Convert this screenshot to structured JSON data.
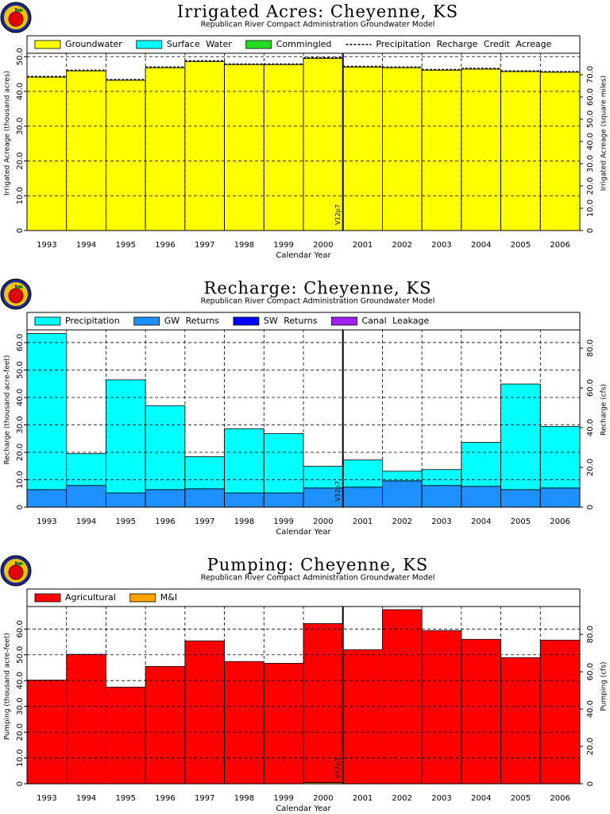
{
  "chart_data": [
    {
      "type": "bar",
      "stacked": true,
      "grid": true,
      "title": "Irrigated Acres: Cheyenne, KS",
      "subtitle": "Republican River Compact Administration Groundwater Model",
      "x_label": "Calendar Year",
      "y_label": "Irrigated Acreage (thousand acres)",
      "y2_label": "Irrigated Acreage (square miles)",
      "annotation": "V12p7",
      "categories": [
        "1993",
        "1994",
        "1995",
        "1996",
        "1997",
        "1998",
        "1999",
        "2000",
        "2001",
        "2002",
        "2003",
        "2004",
        "2005",
        "2006"
      ],
      "series": [
        {
          "name": "Groundwater",
          "color": "#ffff00",
          "values": [
            44.1,
            45.9,
            43.2,
            46.8,
            48.6,
            47.7,
            47.7,
            49.5,
            47.0,
            46.8,
            46.1,
            46.4,
            45.7,
            45.5
          ]
        },
        {
          "name": "Surface Water",
          "color": "#00ffff",
          "values": [
            0,
            0,
            0,
            0,
            0,
            0,
            0,
            0,
            0,
            0,
            0,
            0,
            0,
            0
          ]
        },
        {
          "name": "Commingled",
          "color": "#22dd22",
          "values": [
            0,
            0,
            0,
            0,
            0,
            0,
            0,
            0,
            0,
            0,
            0,
            0,
            0,
            0
          ]
        },
        {
          "name": "Precipitation Recharge Credit Acreage",
          "color": "#000000",
          "type": "line",
          "values": [
            44.3,
            46.1,
            43.4,
            47.0,
            48.8,
            47.9,
            47.9,
            49.7,
            47.2,
            47.0,
            46.3,
            46.6,
            45.9,
            45.7
          ]
        }
      ],
      "ylim": [
        0,
        56
      ],
      "yticks": [
        {
          "value": 0,
          "label": "0"
        },
        {
          "value": 10,
          "label": "10.0"
        },
        {
          "value": 20,
          "label": "20.0"
        },
        {
          "value": 30,
          "label": "30.0"
        },
        {
          "value": 40,
          "label": "40.0"
        },
        {
          "value": 50,
          "label": "50.0"
        }
      ],
      "y2lim": [
        0,
        87.5
      ],
      "y2ticks": [
        0,
        {
          "value": 10,
          "label": "10.0"
        },
        {
          "value": 20,
          "label": "20.0"
        },
        {
          "value": 30,
          "label": "30.0"
        },
        {
          "value": 40,
          "label": "40.0"
        },
        {
          "value": 50,
          "label": "50.0"
        },
        {
          "value": 60,
          "label": "60.0"
        },
        {
          "value": 70,
          "label": "70.0"
        }
      ]
    },
    {
      "type": "bar",
      "stacked": true,
      "grid": true,
      "title": "Recharge: Cheyenne, KS",
      "subtitle": "Republican River Compact Administration Groundwater Model",
      "x_label": "Calendar Year",
      "y_label": "Recharge (thousand acre-feet)",
      "y2_label": "Recharge (cfs)",
      "annotation": "V12p7",
      "categories": [
        "1993",
        "1994",
        "1995",
        "1996",
        "1997",
        "1998",
        "1999",
        "2000",
        "2001",
        "2002",
        "2003",
        "2004",
        "2005",
        "2006"
      ],
      "series": [
        {
          "name": "Precipitation",
          "color": "#00ffff",
          "values": [
            56.9,
            11.6,
            41.2,
            30.6,
            11.7,
            23.4,
            21.6,
            7.9,
            9.9,
            3.5,
            5.8,
            16.0,
            38.5,
            22.4
          ]
        },
        {
          "name": "GW Returns",
          "color": "#1e90ff",
          "values": [
            6.4,
            7.9,
            5.2,
            6.4,
            6.7,
            5.2,
            5.2,
            7.0,
            7.3,
            9.6,
            7.9,
            7.6,
            6.4,
            7.0
          ]
        },
        {
          "name": "SW Returns",
          "color": "#0000ff",
          "values": [
            0,
            0,
            0,
            0,
            0,
            0,
            0,
            0,
            0,
            0,
            0,
            0,
            0,
            0
          ]
        },
        {
          "name": "Canal Leakage",
          "color": "#a020f0",
          "values": [
            0,
            0,
            0,
            0,
            0,
            0,
            0,
            0,
            0,
            0,
            0,
            0,
            0,
            0
          ]
        }
      ],
      "stack_order": [
        1,
        2,
        3,
        0
      ],
      "ylim": [
        0,
        71
      ],
      "yticks": [
        0,
        {
          "value": 10,
          "label": "10.0"
        },
        {
          "value": 20,
          "label": "20.0"
        },
        {
          "value": 30,
          "label": "30.0"
        },
        {
          "value": 40,
          "label": "40.0"
        },
        {
          "value": 50,
          "label": "50.0"
        },
        {
          "value": 60,
          "label": "60.0"
        }
      ],
      "y2lim": [
        0,
        98
      ],
      "y2ticks": [
        0,
        {
          "value": 20,
          "label": "20.0"
        },
        {
          "value": 40,
          "label": "40.0"
        },
        {
          "value": 60,
          "label": "60.0"
        },
        {
          "value": 80,
          "label": "80.0"
        }
      ]
    },
    {
      "type": "bar",
      "stacked": true,
      "grid": true,
      "title": "Pumping: Cheyenne, KS",
      "subtitle": "Republican River Compact Administration Groundwater Model",
      "x_label": "Calendar Year",
      "y_label": "Pumping (thousand acre-feet)",
      "y2_label": "Pumping (cfs)",
      "annotation": "V12p7",
      "categories": [
        "1993",
        "1994",
        "1995",
        "1996",
        "1997",
        "1998",
        "1999",
        "2000",
        "2001",
        "2002",
        "2003",
        "2004",
        "2005",
        "2006"
      ],
      "series": [
        {
          "name": "Agricultural",
          "color": "#ff0000",
          "values": [
            40.2,
            50.2,
            37.5,
            45.5,
            55.4,
            47.4,
            46.7,
            61.6,
            52.0,
            67.5,
            59.4,
            56.0,
            48.9,
            55.7
          ]
        },
        {
          "name": "M&I",
          "color": "#ffa500",
          "values": [
            0,
            0,
            0,
            0,
            0,
            0,
            0,
            0.5,
            0,
            0,
            0,
            0,
            0,
            0
          ]
        }
      ],
      "stack_order": [
        1,
        0
      ],
      "ylim": [
        0,
        75.5
      ],
      "yticks": [
        0,
        {
          "value": 10,
          "label": "10.0"
        },
        {
          "value": 20,
          "label": "20.0"
        },
        {
          "value": 30,
          "label": "30.0"
        },
        {
          "value": 40,
          "label": "40.0"
        },
        {
          "value": 50,
          "label": "50.0"
        },
        {
          "value": 60,
          "label": "60.0"
        }
      ],
      "y2lim": [
        0,
        104.3
      ],
      "y2ticks": [
        0,
        {
          "value": 20,
          "label": "20.0"
        },
        {
          "value": 40,
          "label": "40.0"
        },
        {
          "value": 60,
          "label": "60.0"
        },
        {
          "value": 80,
          "label": "80.0"
        }
      ]
    }
  ]
}
